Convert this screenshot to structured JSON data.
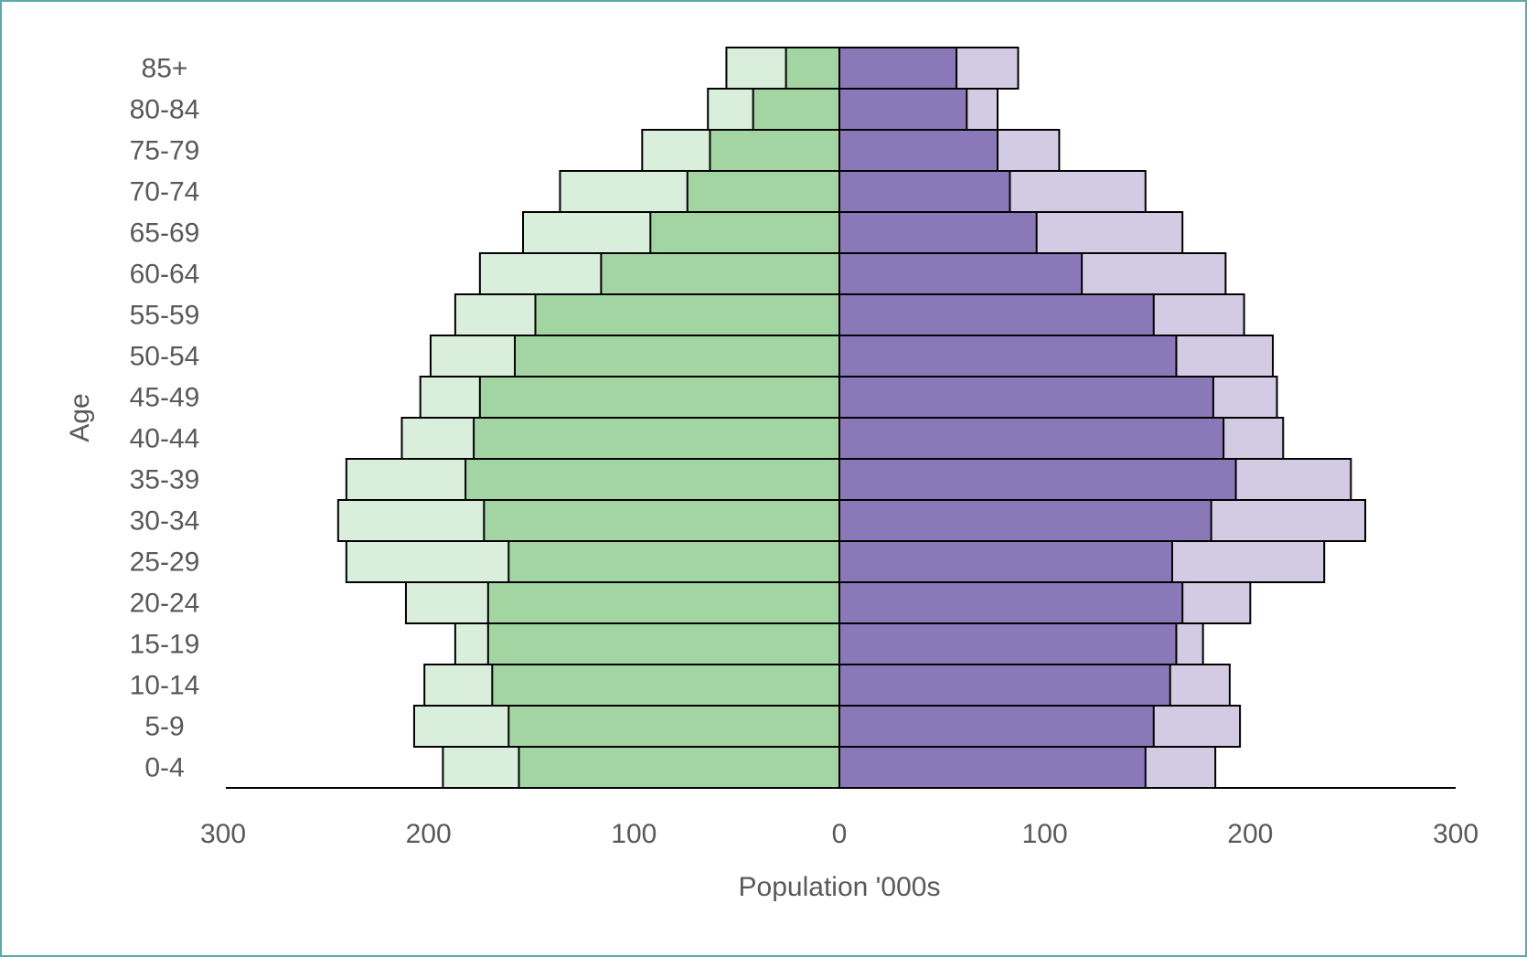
{
  "chart_data": {
    "type": "bar",
    "orientation": "horizontal",
    "layout": "population pyramid",
    "categories": [
      "0-4",
      "5-9",
      "10-14",
      "15-19",
      "20-24",
      "25-29",
      "30-34",
      "35-39",
      "40-44",
      "45-49",
      "50-54",
      "55-59",
      "60-64",
      "65-69",
      "70-74",
      "75-79",
      "80-84",
      "85+"
    ],
    "series": [
      {
        "side": "left",
        "layer": "inner",
        "color": "#a3d5a3",
        "values": [
          156,
          161,
          169,
          171,
          171,
          161,
          173,
          182,
          178,
          175,
          158,
          148,
          116,
          92,
          74,
          63,
          42,
          26
        ]
      },
      {
        "side": "left",
        "layer": "outer",
        "color": "#d9eedb",
        "values": [
          193,
          207,
          202,
          187,
          211,
          240,
          244,
          240,
          213,
          204,
          199,
          187,
          175,
          154,
          136,
          96,
          64,
          55
        ]
      },
      {
        "side": "right",
        "layer": "inner",
        "color": "#8b78b8",
        "values": [
          149,
          153,
          161,
          164,
          167,
          162,
          181,
          193,
          187,
          182,
          164,
          153,
          118,
          96,
          83,
          77,
          62,
          57
        ]
      },
      {
        "side": "right",
        "layer": "outer",
        "color": "#d3cbe4",
        "values": [
          183,
          195,
          190,
          177,
          200,
          236,
          256,
          249,
          216,
          213,
          211,
          197,
          188,
          167,
          149,
          107,
          77,
          87
        ]
      }
    ],
    "xlabel": "Population '000s",
    "ylabel": "Age",
    "xlim": [
      -300,
      300
    ],
    "xticks": [
      -300,
      -200,
      -100,
      0,
      100,
      200,
      300
    ],
    "xtick_labels": [
      "300",
      "200",
      "100",
      "0",
      "100",
      "200",
      "300"
    ],
    "grid": false,
    "legend": "none"
  }
}
